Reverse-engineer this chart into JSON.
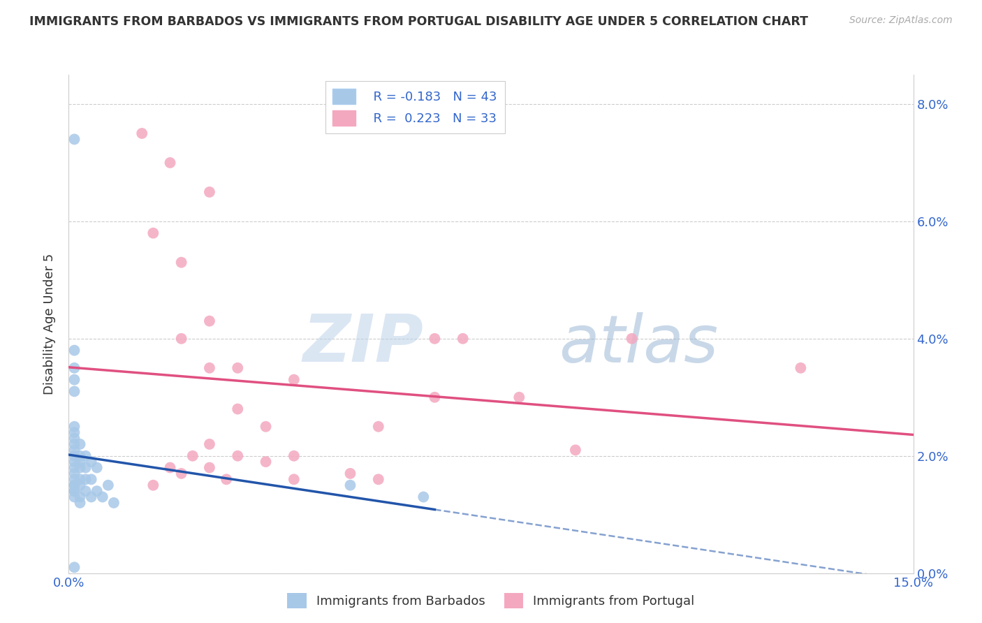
{
  "title": "IMMIGRANTS FROM BARBADOS VS IMMIGRANTS FROM PORTUGAL DISABILITY AGE UNDER 5 CORRELATION CHART",
  "source": "Source: ZipAtlas.com",
  "ylabel": "Disability Age Under 5",
  "xlim": [
    0,
    0.15
  ],
  "ylim": [
    0,
    0.085
  ],
  "barbados_R": -0.183,
  "barbados_N": 43,
  "portugal_R": 0.223,
  "portugal_N": 33,
  "barbados_color": "#a8c8e8",
  "portugal_color": "#f4a8c0",
  "barbados_line_color": "#2255aa",
  "portugal_line_color": "#e05080",
  "barbados_x": [
    0.001,
    0.001,
    0.001,
    0.001,
    0.001,
    0.001,
    0.001,
    0.001,
    0.001,
    0.001,
    0.001,
    0.001,
    0.001,
    0.001,
    0.001,
    0.001,
    0.001,
    0.001,
    0.001,
    0.001,
    0.002,
    0.002,
    0.002,
    0.002,
    0.002,
    0.002,
    0.002,
    0.002,
    0.003,
    0.003,
    0.003,
    0.003,
    0.004,
    0.004,
    0.004,
    0.005,
    0.005,
    0.006,
    0.007,
    0.008,
    0.05,
    0.063,
    0.001
  ],
  "barbados_y": [
    0.074,
    0.038,
    0.035,
    0.033,
    0.031,
    0.025,
    0.024,
    0.023,
    0.022,
    0.021,
    0.02,
    0.019,
    0.018,
    0.017,
    0.016,
    0.015,
    0.015,
    0.014,
    0.014,
    0.013,
    0.022,
    0.02,
    0.019,
    0.018,
    0.016,
    0.015,
    0.013,
    0.012,
    0.02,
    0.018,
    0.016,
    0.014,
    0.019,
    0.016,
    0.013,
    0.018,
    0.014,
    0.013,
    0.015,
    0.012,
    0.015,
    0.013,
    0.001
  ],
  "portugal_x": [
    0.013,
    0.018,
    0.025,
    0.015,
    0.02,
    0.025,
    0.02,
    0.025,
    0.03,
    0.035,
    0.025,
    0.03,
    0.03,
    0.035,
    0.04,
    0.04,
    0.05,
    0.055,
    0.065,
    0.07,
    0.08,
    0.09,
    0.1,
    0.13,
    0.065,
    0.055,
    0.04,
    0.025,
    0.02,
    0.015,
    0.018,
    0.022,
    0.028
  ],
  "portugal_y": [
    0.075,
    0.07,
    0.065,
    0.058,
    0.053,
    0.043,
    0.04,
    0.035,
    0.028,
    0.025,
    0.022,
    0.035,
    0.02,
    0.019,
    0.033,
    0.02,
    0.017,
    0.016,
    0.04,
    0.04,
    0.03,
    0.021,
    0.04,
    0.035,
    0.03,
    0.025,
    0.016,
    0.018,
    0.017,
    0.015,
    0.018,
    0.02,
    0.016
  ],
  "watermark_zip": "ZIP",
  "watermark_atlas": "atlas",
  "background_color": "#ffffff",
  "grid_color": "#cccccc"
}
